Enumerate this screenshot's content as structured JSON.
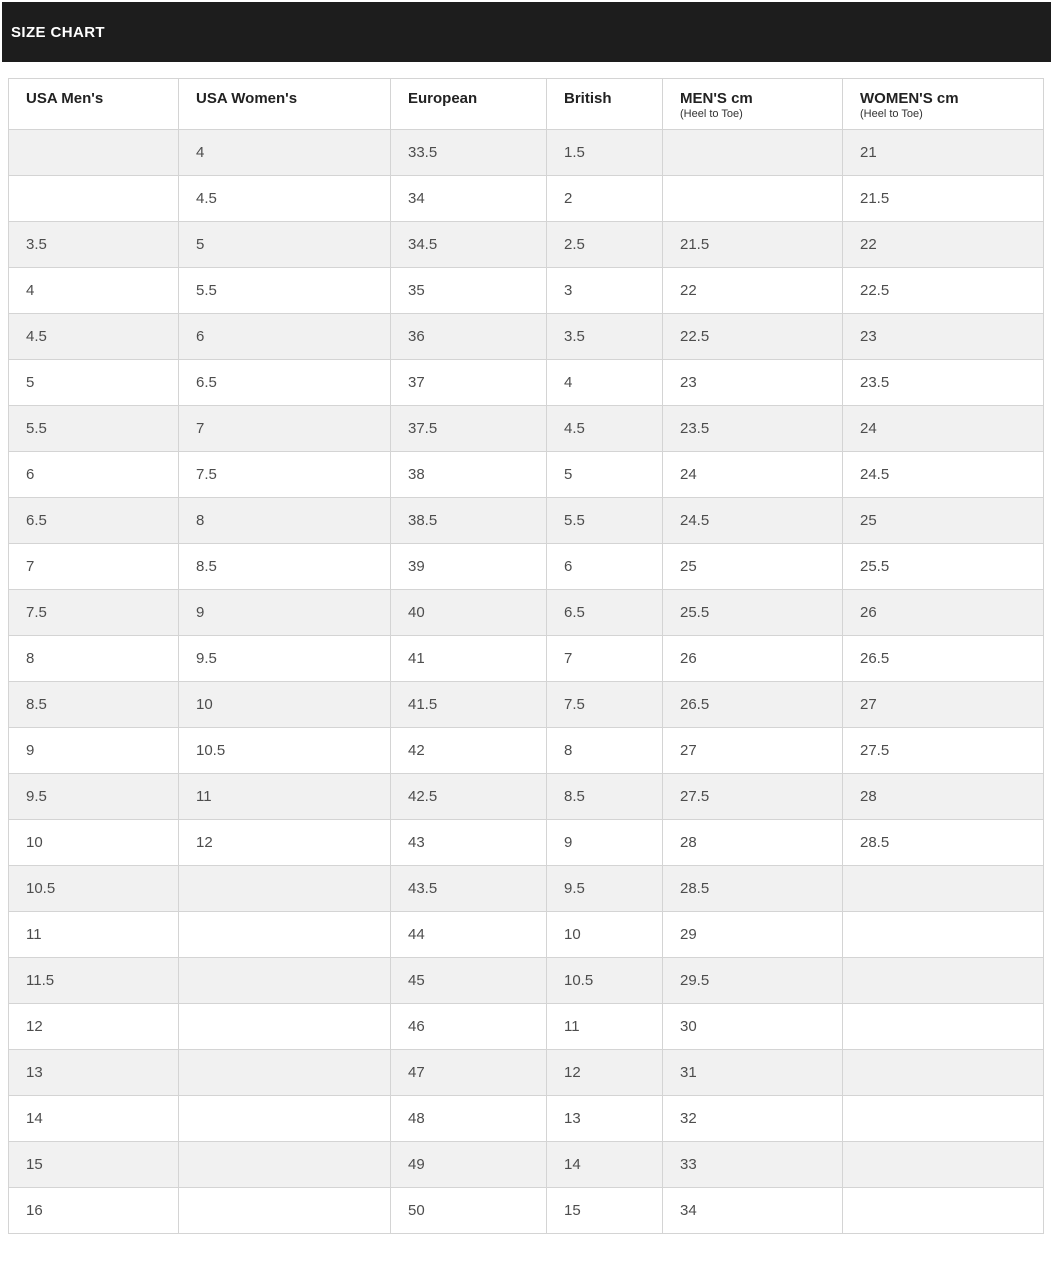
{
  "header": {
    "title": "SIZE CHART"
  },
  "colors": {
    "banner_bg": "#1d1d1d",
    "banner_text": "#ffffff",
    "row_stripe_bg": "#f1f1f1",
    "row_bg": "#ffffff",
    "border": "#d4d4d4",
    "cell_text": "#4d4d4d",
    "column_header_text": "#222222"
  },
  "table": {
    "columns": [
      {
        "key": "usa-mens",
        "label": "USA Men's",
        "sublabel": ""
      },
      {
        "key": "usa-womens",
        "label": "USA Women's",
        "sublabel": ""
      },
      {
        "key": "european",
        "label": "European",
        "sublabel": ""
      },
      {
        "key": "british",
        "label": "British",
        "sublabel": ""
      },
      {
        "key": "mens-cm",
        "label": "MEN'S cm",
        "sublabel": "(Heel to Toe)"
      },
      {
        "key": "womens-cm",
        "label": "WOMEN'S cm",
        "sublabel": "(Heel to Toe)"
      }
    ],
    "rows": [
      [
        "",
        "4",
        "33.5",
        "1.5",
        "",
        "21"
      ],
      [
        "",
        "4.5",
        "34",
        "2",
        "",
        "21.5"
      ],
      [
        "3.5",
        "5",
        "34.5",
        "2.5",
        "21.5",
        "22"
      ],
      [
        "4",
        "5.5",
        "35",
        "3",
        "22",
        "22.5"
      ],
      [
        "4.5",
        "6",
        "36",
        "3.5",
        "22.5",
        "23"
      ],
      [
        "5",
        "6.5",
        "37",
        "4",
        "23",
        "23.5"
      ],
      [
        "5.5",
        "7",
        "37.5",
        "4.5",
        "23.5",
        "24"
      ],
      [
        "6",
        "7.5",
        "38",
        "5",
        "24",
        "24.5"
      ],
      [
        "6.5",
        "8",
        "38.5",
        "5.5",
        "24.5",
        "25"
      ],
      [
        "7",
        "8.5",
        "39",
        "6",
        "25",
        "25.5"
      ],
      [
        "7.5",
        "9",
        "40",
        "6.5",
        "25.5",
        "26"
      ],
      [
        "8",
        "9.5",
        "41",
        "7",
        "26",
        "26.5"
      ],
      [
        "8.5",
        "10",
        "41.5",
        "7.5",
        "26.5",
        "27"
      ],
      [
        "9",
        "10.5",
        "42",
        "8",
        "27",
        "27.5"
      ],
      [
        "9.5",
        "11",
        "42.5",
        "8.5",
        "27.5",
        "28"
      ],
      [
        "10",
        "12",
        "43",
        "9",
        "28",
        "28.5"
      ],
      [
        "10.5",
        "",
        "43.5",
        "9.5",
        "28.5",
        ""
      ],
      [
        "11",
        "",
        "44",
        "10",
        "29",
        ""
      ],
      [
        "11.5",
        "",
        "45",
        "10.5",
        "29.5",
        ""
      ],
      [
        "12",
        "",
        "46",
        "11",
        "30",
        ""
      ],
      [
        "13",
        "",
        "47",
        "12",
        "31",
        ""
      ],
      [
        "14",
        "",
        "48",
        "13",
        "32",
        ""
      ],
      [
        "15",
        "",
        "49",
        "14",
        "33",
        ""
      ],
      [
        "16",
        "",
        "50",
        "15",
        "34",
        ""
      ]
    ]
  }
}
